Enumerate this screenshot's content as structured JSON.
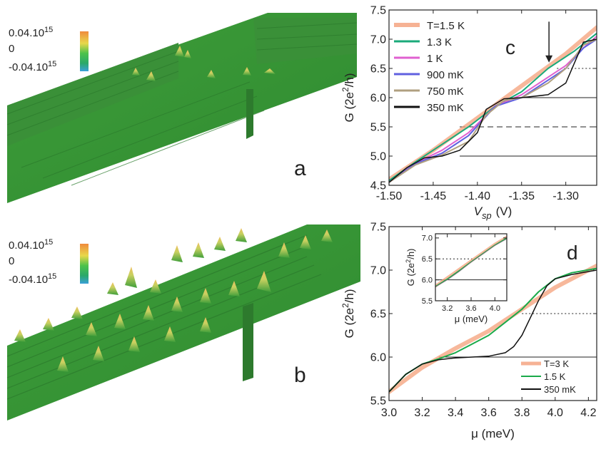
{
  "surface_panels": [
    {
      "letter": "a",
      "colorbar": {
        "max_label": "0.04.10",
        "max_exp": "15",
        "mid_label": "0",
        "min_label": "-0.04.10",
        "min_exp": "15",
        "colors": [
          "#f08a3c",
          "#e8d84a",
          "#4cc24a",
          "#2aa86a",
          "#3aa0d8"
        ]
      },
      "surface_color": "#3f9a3c"
    },
    {
      "letter": "b",
      "colorbar": {
        "max_label": "0.04.10",
        "max_exp": "15",
        "mid_label": "0",
        "min_label": "-0.04.10",
        "min_exp": "15",
        "colors": [
          "#f08a3c",
          "#e8d84a",
          "#4cc24a",
          "#2aa86a",
          "#3aa0d8"
        ]
      },
      "surface_color": "#3f9a3c"
    }
  ],
  "chart_data": [
    {
      "type": "line",
      "panel_letter": "c",
      "xlabel": "V",
      "xlabel_sub": "sp",
      "xlabel_unit": "(V)",
      "ylabel": "G (2e",
      "ylabel_sup": "2",
      "ylabel_end": "/h)",
      "xlim": [
        -1.5,
        -1.265
      ],
      "ylim": [
        4.5,
        7.5
      ],
      "xticks": [
        "-1.50",
        "-1.45",
        "-1.40",
        "-1.35",
        "-1.30"
      ],
      "xtick_values": [
        -1.5,
        -1.45,
        -1.4,
        -1.35,
        -1.3
      ],
      "yticks": [
        "4.5",
        "5.0",
        "5.5",
        "6.0",
        "6.5",
        "7.0",
        "7.5"
      ],
      "ytick_values": [
        4.5,
        5.0,
        5.5,
        6.0,
        6.5,
        7.0,
        7.5
      ],
      "hlines": [
        {
          "y": 5.0,
          "x_from": -1.42,
          "style": "solid"
        },
        {
          "y": 5.5,
          "x_from": -1.42,
          "style": "dashed"
        },
        {
          "y": 6.0,
          "x_from": -1.35,
          "style": "solid"
        },
        {
          "y": 6.5,
          "x_from": -1.31,
          "style": "dotted"
        }
      ],
      "arrow": {
        "x": -1.319,
        "y_from": 7.3,
        "y_to": 6.6
      },
      "legend_position": "top-left",
      "series": [
        {
          "name": "T=1.5 K",
          "color": "#f4a07a",
          "width": 6,
          "x": [
            -1.5,
            -1.45,
            -1.4,
            -1.35,
            -1.3,
            -1.265
          ],
          "y": [
            4.6,
            5.1,
            5.65,
            6.2,
            6.75,
            7.2
          ]
        },
        {
          "name": "1.3 K",
          "color": "#1aaa7a",
          "width": 2,
          "x": [
            -1.5,
            -1.47,
            -1.44,
            -1.41,
            -1.38,
            -1.35,
            -1.32,
            -1.29,
            -1.265
          ],
          "y": [
            4.58,
            4.9,
            5.2,
            5.5,
            5.85,
            6.1,
            6.5,
            6.8,
            7.1
          ]
        },
        {
          "name": "1 K",
          "color": "#e060d0",
          "width": 2,
          "x": [
            -1.5,
            -1.47,
            -1.44,
            -1.41,
            -1.38,
            -1.35,
            -1.32,
            -1.3,
            -1.28,
            -1.265
          ],
          "y": [
            4.55,
            4.88,
            5.1,
            5.4,
            5.85,
            6.05,
            6.35,
            6.55,
            6.85,
            7.05
          ]
        },
        {
          "name": "900 mK",
          "color": "#6060e0",
          "width": 2,
          "x": [
            -1.5,
            -1.47,
            -1.44,
            -1.41,
            -1.38,
            -1.35,
            -1.32,
            -1.3,
            -1.28,
            -1.265
          ],
          "y": [
            4.55,
            4.87,
            5.05,
            5.35,
            5.85,
            6.0,
            6.3,
            6.5,
            6.85,
            7.0
          ]
        },
        {
          "name": "750 mK",
          "color": "#b0a080",
          "width": 2,
          "x": [
            -1.5,
            -1.47,
            -1.44,
            -1.41,
            -1.39,
            -1.37,
            -1.35,
            -1.32,
            -1.3,
            -1.28,
            -1.265
          ],
          "y": [
            4.55,
            4.85,
            5.02,
            5.25,
            5.7,
            5.95,
            6.0,
            6.25,
            6.5,
            6.9,
            7.0
          ]
        },
        {
          "name": "350 mK",
          "color": "#111111",
          "width": 1.5,
          "x": [
            -1.5,
            -1.48,
            -1.46,
            -1.44,
            -1.42,
            -1.4,
            -1.39,
            -1.37,
            -1.35,
            -1.32,
            -1.3,
            -1.29,
            -1.28,
            -1.265
          ],
          "y": [
            4.55,
            4.8,
            4.97,
            5.0,
            5.1,
            5.4,
            5.8,
            5.98,
            6.0,
            6.05,
            6.25,
            6.6,
            6.95,
            7.0
          ]
        }
      ]
    },
    {
      "type": "line",
      "panel_letter": "d",
      "xlabel": "μ (meV)",
      "ylabel": "G (2e",
      "ylabel_sup": "2",
      "ylabel_end": "/h)",
      "xlim": [
        3.0,
        4.25
      ],
      "ylim": [
        5.5,
        7.5
      ],
      "xticks": [
        "3.0",
        "3.2",
        "3.4",
        "3.6",
        "3.8",
        "4.0",
        "4.2"
      ],
      "xtick_values": [
        3.0,
        3.2,
        3.4,
        3.6,
        3.8,
        4.0,
        4.2
      ],
      "yticks": [
        "5.5",
        "6.0",
        "6.5",
        "7.0",
        "7.5"
      ],
      "ytick_values": [
        5.5,
        6.0,
        6.5,
        7.0,
        7.5
      ],
      "hlines": [
        {
          "y": 6.0,
          "x_from": 3.3,
          "style": "solid"
        },
        {
          "y": 6.5,
          "x_from": 3.8,
          "style": "dotted"
        }
      ],
      "legend_position": "bottom-right",
      "series": [
        {
          "name": "T=3 K",
          "color": "#f4a07a",
          "width": 6,
          "x": [
            3.0,
            3.2,
            3.4,
            3.6,
            3.8,
            4.0,
            4.25
          ],
          "y": [
            5.6,
            5.88,
            6.1,
            6.3,
            6.55,
            6.8,
            7.05
          ]
        },
        {
          "name": "1.5 K",
          "color": "#1aaa4a",
          "width": 2,
          "x": [
            3.0,
            3.1,
            3.2,
            3.3,
            3.4,
            3.5,
            3.6,
            3.7,
            3.8,
            3.9,
            4.0,
            4.1,
            4.25
          ],
          "y": [
            5.6,
            5.8,
            5.92,
            5.98,
            6.05,
            6.15,
            6.25,
            6.4,
            6.55,
            6.75,
            6.9,
            6.97,
            7.02
          ]
        },
        {
          "name": "350 mK",
          "color": "#111111",
          "width": 1.5,
          "x": [
            3.0,
            3.1,
            3.2,
            3.3,
            3.4,
            3.5,
            3.6,
            3.7,
            3.75,
            3.8,
            3.85,
            3.9,
            3.95,
            4.0,
            4.1,
            4.25
          ],
          "y": [
            5.6,
            5.8,
            5.92,
            5.97,
            5.99,
            6.0,
            6.01,
            6.05,
            6.12,
            6.25,
            6.45,
            6.65,
            6.82,
            6.9,
            6.95,
            7.0
          ]
        }
      ]
    },
    {
      "type": "line",
      "panel_letter": "",
      "xlabel": "μ (meV)",
      "ylabel": "G (2e",
      "ylabel_sup": "2",
      "ylabel_end": "/h)",
      "xlim": [
        3.0,
        4.2
      ],
      "ylim": [
        5.5,
        7.1
      ],
      "xticks": [
        "3.2",
        "3.6",
        "4.0"
      ],
      "xtick_values": [
        3.2,
        3.6,
        4.0
      ],
      "yticks": [
        "5.5",
        "6.0",
        "6.5",
        "7.0"
      ],
      "ytick_values": [
        5.5,
        6.0,
        6.5,
        7.0
      ],
      "hlines": [
        {
          "y": 6.0,
          "x_from": 3.0,
          "style": "solid"
        },
        {
          "y": 6.5,
          "x_from": 3.0,
          "style": "dotted"
        }
      ],
      "series": [
        {
          "name": "",
          "color": "#f4a07a",
          "width": 4,
          "x": [
            3.0,
            3.2,
            3.4,
            3.6,
            3.8,
            4.0,
            4.2
          ],
          "y": [
            5.85,
            6.05,
            6.25,
            6.45,
            6.65,
            6.85,
            7.02
          ]
        },
        {
          "name": "",
          "color": "#1aaa4a",
          "width": 1.5,
          "x": [
            3.0,
            3.2,
            3.4,
            3.6,
            3.8,
            4.0,
            4.2
          ],
          "y": [
            5.84,
            6.02,
            6.22,
            6.43,
            6.63,
            6.83,
            7.0
          ]
        },
        {
          "name": "",
          "color": "#777777",
          "width": 1,
          "x": [
            3.0,
            3.2,
            3.4,
            3.6,
            3.8,
            4.0,
            4.2
          ],
          "y": [
            5.83,
            6.0,
            6.2,
            6.42,
            6.62,
            6.82,
            6.98
          ]
        }
      ]
    }
  ]
}
